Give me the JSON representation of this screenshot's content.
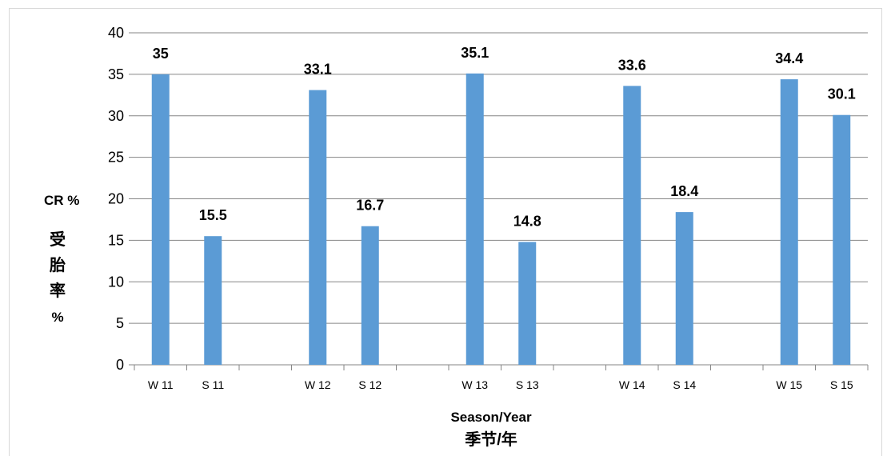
{
  "chart_data": {
    "type": "bar",
    "categories": [
      "W 11",
      "S 11",
      "",
      "W 12",
      "S 12",
      "",
      "W 13",
      "S 13",
      "",
      "W 14",
      "S 14",
      "",
      "W 15",
      "S 15"
    ],
    "values": [
      35,
      15.5,
      null,
      33.1,
      16.7,
      null,
      35.1,
      14.8,
      null,
      33.6,
      18.4,
      null,
      34.4,
      30.1
    ],
    "value_labels": [
      "35",
      "15.5",
      "",
      "33.1",
      "16.7",
      "",
      "35.1",
      "14.8",
      "",
      "33.6",
      "18.4",
      "",
      "34.4",
      "30.1"
    ],
    "ylim": [
      0,
      40
    ],
    "yticks": [
      "0",
      "5",
      "10",
      "15",
      "20",
      "25",
      "30",
      "35",
      "40"
    ],
    "ylabel": "CR %",
    "ylabel_cn": [
      "受",
      "胎",
      "率",
      "%"
    ],
    "xlabel": "Season/Year",
    "xlabel_cn": "季节/年",
    "grid": true,
    "bar_color": "#5b9bd5",
    "grid_color": "#868686"
  }
}
